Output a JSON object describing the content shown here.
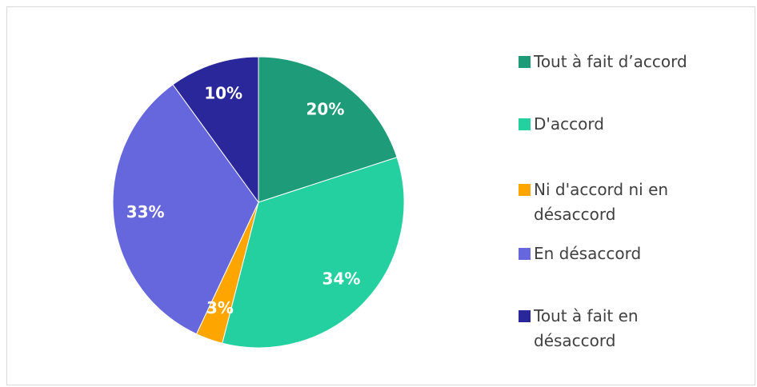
{
  "chart_data": {
    "type": "pie",
    "categories": [
      "Tout à fait d’accord",
      "D'accord",
      "Ni d'accord ni en désaccord",
      "En désaccord",
      "Tout à fait en désaccord"
    ],
    "values": [
      20,
      34,
      3,
      33,
      10
    ],
    "value_labels": [
      "20%",
      "34%",
      "3%",
      "33%",
      "10%"
    ],
    "colors": [
      "#1e9b78",
      "#25d0a0",
      "#ffa500",
      "#6666dd",
      "#29279a"
    ],
    "legend": "right"
  }
}
